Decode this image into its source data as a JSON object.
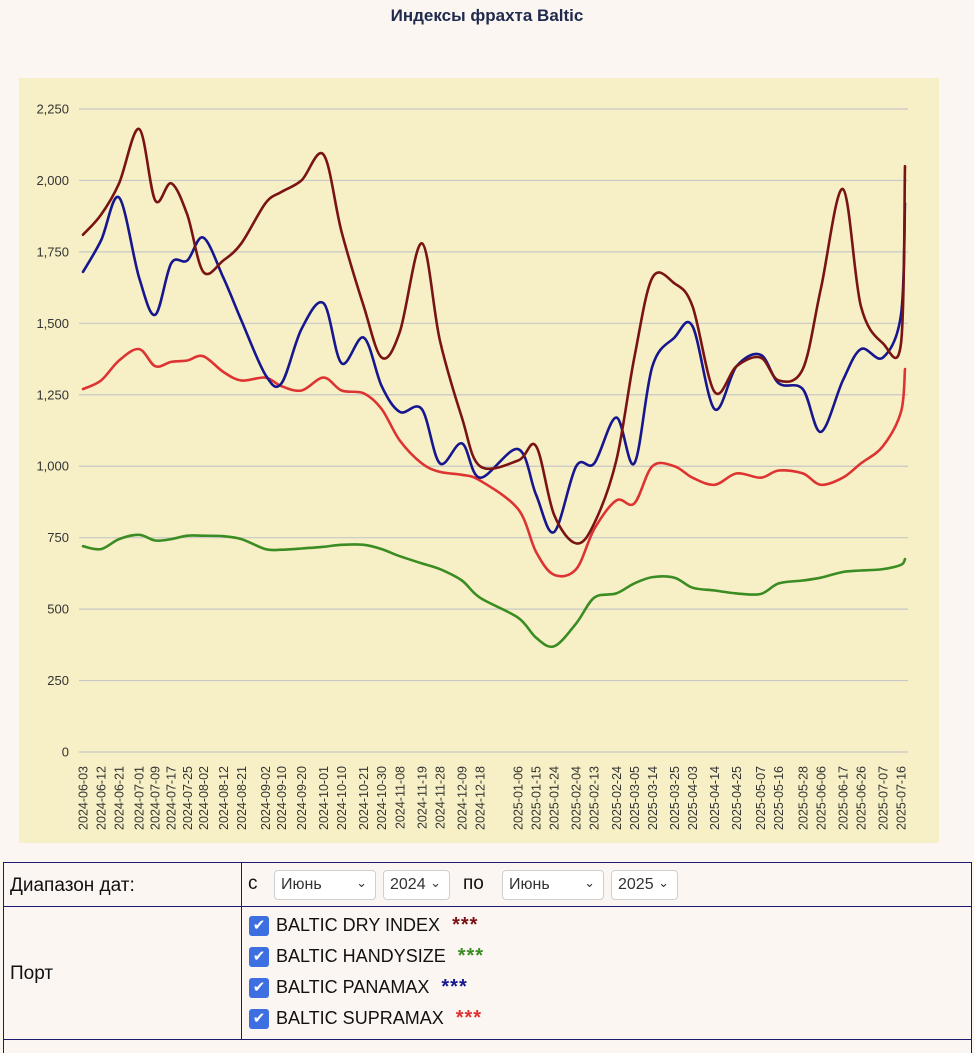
{
  "title": "Индексы фрахта Baltic",
  "colors": {
    "plot_background": "#f7f0c6",
    "grid": "#c7c7c7",
    "dry": "#7a1414",
    "handysize": "#3a8c23",
    "panamax": "#16168f",
    "supramax": "#dd3333"
  },
  "chart_data": {
    "type": "line",
    "title": "Индексы фрахта Baltic",
    "ylim": [
      0,
      2250
    ],
    "yticks": [
      "0",
      "250",
      "500",
      "750",
      "1,000",
      "1,250",
      "1,500",
      "1,750",
      "2,000",
      "2,250"
    ],
    "ytick_values": [
      0,
      250,
      500,
      750,
      1000,
      1250,
      1500,
      1750,
      2000,
      2250
    ],
    "grid": true,
    "legend": "none",
    "xticks": [
      "2024-06-03",
      "2024-06-12",
      "2024-06-21",
      "2024-07-01",
      "2024-07-09",
      "2024-07-17",
      "2024-07-25",
      "2024-08-02",
      "2024-08-12",
      "2024-08-21",
      "2024-09-02",
      "2024-09-10",
      "2024-09-20",
      "2024-10-01",
      "2024-10-10",
      "2024-10-21",
      "2024-10-30",
      "2024-11-08",
      "2024-11-19",
      "2024-11-28",
      "2024-12-09",
      "2024-12-18",
      "2025-01-06",
      "2025-01-15",
      "2025-01-24",
      "2025-02-04",
      "2025-02-13",
      "2025-02-24",
      "2025-03-05",
      "2025-03-14",
      "2025-03-25",
      "2025-04-03",
      "2025-04-14",
      "2025-04-25",
      "2025-05-07",
      "2025-05-16",
      "2025-05-28",
      "2025-06-06",
      "2025-06-17",
      "2025-06-26",
      "2025-07-07",
      "2025-07-16"
    ],
    "x": [
      "2024-06-03",
      "2024-06-12",
      "2024-06-21",
      "2024-07-01",
      "2024-07-09",
      "2024-07-17",
      "2024-07-25",
      "2024-08-02",
      "2024-08-12",
      "2024-08-21",
      "2024-09-02",
      "2024-09-10",
      "2024-09-20",
      "2024-10-01",
      "2024-10-10",
      "2024-10-21",
      "2024-10-30",
      "2024-11-08",
      "2024-11-19",
      "2024-11-28",
      "2024-12-09",
      "2024-12-18",
      "2025-01-06",
      "2025-01-15",
      "2025-01-24",
      "2025-02-04",
      "2025-02-13",
      "2025-02-24",
      "2025-03-05",
      "2025-03-14",
      "2025-03-25",
      "2025-04-03",
      "2025-04-14",
      "2025-04-25",
      "2025-05-07",
      "2025-05-16",
      "2025-05-28",
      "2025-06-06",
      "2025-06-17",
      "2025-06-26",
      "2025-07-07",
      "2025-07-16",
      "2025-07-18"
    ],
    "series": [
      {
        "key": "dry",
        "color": "#7a1414",
        "values": [
          1810,
          1880,
          1990,
          2180,
          1930,
          1990,
          1880,
          1680,
          1720,
          1780,
          1920,
          1960,
          2000,
          2090,
          1820,
          1560,
          1380,
          1470,
          1780,
          1440,
          1170,
          1000,
          1020,
          1070,
          830,
          730,
          800,
          1020,
          1380,
          1660,
          1640,
          1560,
          1260,
          1350,
          1380,
          1300,
          1340,
          1620,
          1970,
          1560,
          1430,
          1430,
          2050
        ]
      },
      {
        "key": "handysize",
        "color": "#3a8c23",
        "values": [
          720,
          710,
          745,
          760,
          740,
          745,
          757,
          757,
          755,
          745,
          710,
          708,
          712,
          718,
          725,
          725,
          710,
          685,
          660,
          640,
          600,
          540,
          470,
          400,
          370,
          450,
          540,
          555,
          590,
          612,
          610,
          575,
          565,
          555,
          553,
          590,
          600,
          610,
          630,
          635,
          640,
          655,
          675
        ]
      },
      {
        "key": "panamax",
        "color": "#16168f",
        "values": [
          1680,
          1790,
          1940,
          1660,
          1530,
          1710,
          1720,
          1800,
          1660,
          1510,
          1320,
          1290,
          1480,
          1570,
          1360,
          1450,
          1280,
          1190,
          1200,
          1010,
          1080,
          960,
          1060,
          900,
          770,
          1000,
          1010,
          1170,
          1010,
          1350,
          1450,
          1490,
          1200,
          1350,
          1390,
          1290,
          1270,
          1120,
          1300,
          1410,
          1380,
          1530,
          1920
        ]
      },
      {
        "key": "supramax",
        "color": "#dd3333",
        "values": [
          1270,
          1300,
          1370,
          1410,
          1350,
          1365,
          1370,
          1385,
          1330,
          1300,
          1310,
          1280,
          1265,
          1310,
          1265,
          1255,
          1200,
          1090,
          1010,
          980,
          970,
          950,
          850,
          700,
          620,
          640,
          780,
          880,
          870,
          1000,
          1000,
          960,
          935,
          975,
          960,
          985,
          975,
          935,
          960,
          1010,
          1070,
          1190,
          1340
        ]
      }
    ]
  },
  "controls": {
    "date_range_label": "Диапазон дат:",
    "from_label": "с",
    "from_month": "Июнь",
    "from_year": "2024",
    "to_label": "по",
    "to_month": "Июнь",
    "to_year": "2025",
    "port_label": "Порт",
    "ports": [
      {
        "label": "BALTIC DRY INDEX",
        "stars": "***",
        "color": "#7a1414",
        "checked": true
      },
      {
        "label": "BALTIC HANDYSIZE",
        "stars": "***",
        "color": "#3a8c23",
        "checked": true
      },
      {
        "label": "BALTIC PANAMAX",
        "stars": "***",
        "color": "#16168f",
        "checked": true
      },
      {
        "label": "BALTIC SUPRAMAX",
        "stars": "***",
        "color": "#dd3333",
        "checked": true
      }
    ]
  }
}
